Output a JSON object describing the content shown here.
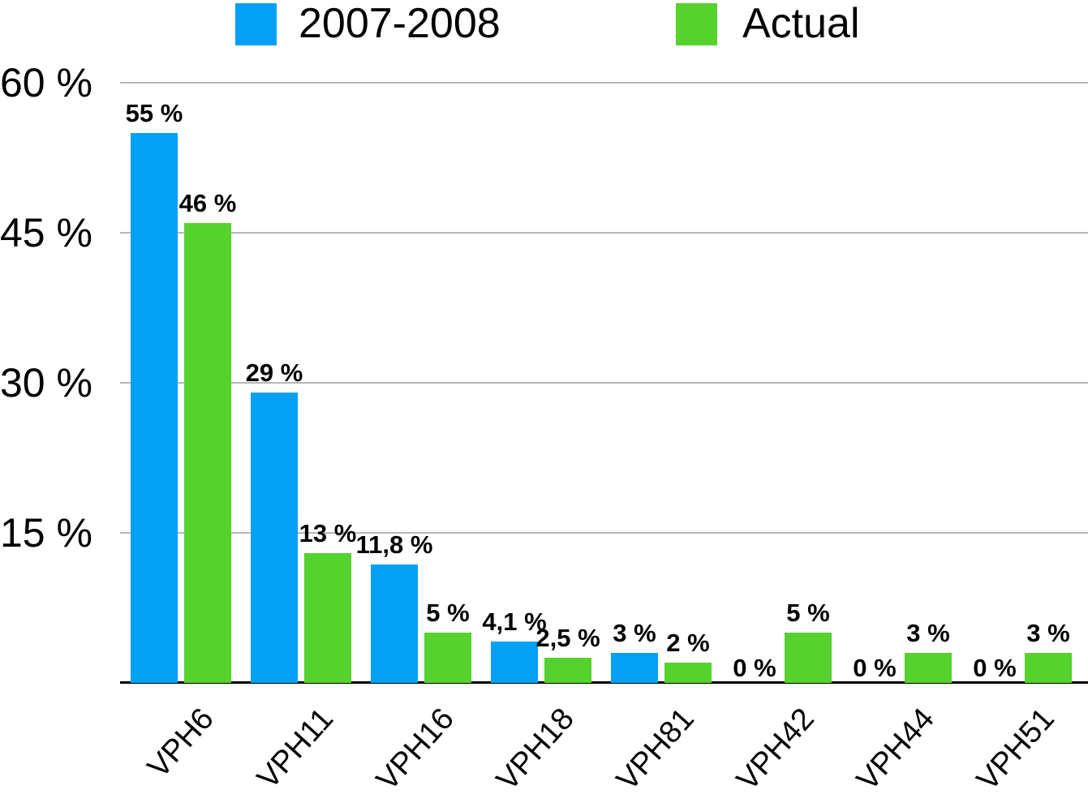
{
  "legend": {
    "items": [
      {
        "label": "2007-2008",
        "color": "#03A1F5"
      },
      {
        "label": "Actual",
        "color": "#55D22D"
      }
    ]
  },
  "colors": {
    "series_blue": "#03A1F5",
    "series_green": "#55D22D",
    "gridline": "#b7b7b7",
    "axis": "#000000",
    "background": "#ffffff",
    "text": "#000000"
  },
  "chart_data": {
    "type": "bar",
    "title": "",
    "categories": [
      "VPH6",
      "VPH11",
      "VPH16",
      "VPH18",
      "VPH81",
      "VPH42",
      "VPH44",
      "VPH51"
    ],
    "series": [
      {
        "name": "2007-2008",
        "color": "#03A1F5",
        "values": [
          55,
          29,
          11.8,
          4.1,
          3,
          0,
          0,
          0
        ],
        "labels": [
          "55 %",
          "29 %",
          "11,8 %",
          "4,1 %",
          "3 %",
          "0 %",
          "0 %",
          "0 %"
        ]
      },
      {
        "name": "Actual",
        "color": "#55D22D",
        "values": [
          46,
          13,
          5,
          2.5,
          2,
          5,
          3,
          3
        ],
        "labels": [
          "46 %",
          "13 %",
          "5 %",
          "2,5 %",
          "2 %",
          "5 %",
          "3 %",
          "3 %"
        ]
      }
    ],
    "y_axis": {
      "tick_labels": [
        "60 %",
        "45 %",
        "30 %",
        "15 %"
      ],
      "tick_values": [
        60,
        45,
        30,
        15
      ],
      "range": [
        0,
        60
      ],
      "grid": true
    },
    "x_axis": {
      "label_rotation_deg": -48
    },
    "legend_position": "top",
    "value_label_decimal_separator": ","
  }
}
